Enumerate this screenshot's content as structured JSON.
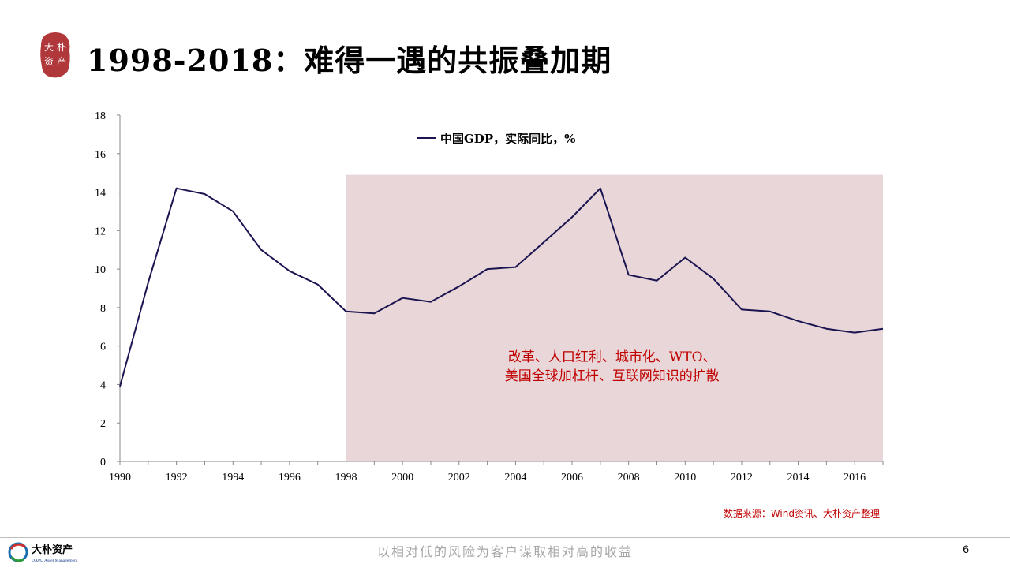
{
  "slide": {
    "title": "1998-2018：难得一遇的共振叠加期",
    "brand_seal_text": [
      "大",
      "朴",
      "资",
      "产"
    ],
    "source_note": "数据来源：Wind资讯、大朴资产整理",
    "footer_brand_cn": "大朴资产",
    "footer_brand_en": "DAPU Asset Management",
    "footer_slogan": "以相对低的风险为客户谋取相对高的收益",
    "page_number": "6"
  },
  "colors": {
    "line": "#1a1450",
    "highlight_fill": "#e8d6d8",
    "annotation": "#c00000",
    "seal": "#b0373a"
  },
  "chart_data": {
    "type": "line",
    "series": [
      {
        "name": "中国GDP，实际同比，%",
        "x": [
          1990,
          1991,
          1992,
          1993,
          1994,
          1995,
          1996,
          1997,
          1998,
          1999,
          2000,
          2001,
          2002,
          2003,
          2004,
          2005,
          2006,
          2007,
          2008,
          2009,
          2010,
          2011,
          2012,
          2013,
          2014,
          2015,
          2016,
          2017
        ],
        "values": [
          3.9,
          9.3,
          14.2,
          13.9,
          13.0,
          11.0,
          9.9,
          9.2,
          7.8,
          7.7,
          8.5,
          8.3,
          9.1,
          10.0,
          10.1,
          11.4,
          12.7,
          14.2,
          9.7,
          9.4,
          10.6,
          9.5,
          7.9,
          7.8,
          7.3,
          6.9,
          6.7,
          6.9
        ]
      }
    ],
    "xlim": [
      1990,
      2017
    ],
    "ylim": [
      0,
      18
    ],
    "x_ticks": [
      "1990",
      "1992",
      "1994",
      "1996",
      "1998",
      "2000",
      "2002",
      "2004",
      "2006",
      "2008",
      "2010",
      "2012",
      "2014",
      "2016"
    ],
    "y_ticks": [
      "0",
      "2",
      "4",
      "6",
      "8",
      "10",
      "12",
      "14",
      "16",
      "18"
    ],
    "legend": "top-left",
    "grid": false,
    "highlight_range": {
      "x_start": 1998,
      "x_end": 2017,
      "y_top": 14.9,
      "annotation": [
        "改革、人口红利、城市化、WTO、",
        "美国全球加杠杆、互联网知识的扩散"
      ]
    }
  }
}
